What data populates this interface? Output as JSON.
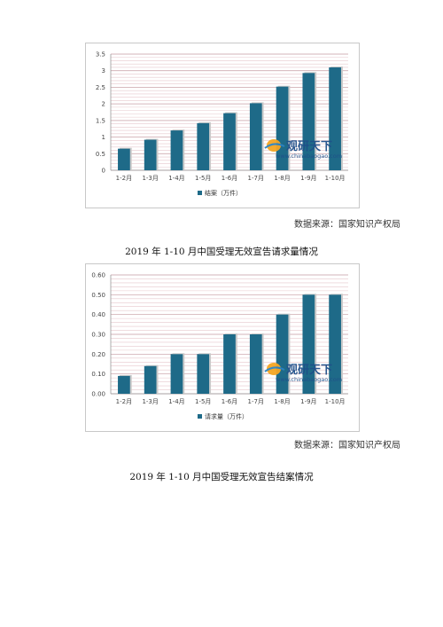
{
  "charts": [
    {
      "id": "chart1",
      "chart_data": {
        "type": "bar",
        "categories": [
          "1-2月",
          "1-3月",
          "1-4月",
          "1-5月",
          "1-6月",
          "1-7月",
          "1-8月",
          "1-9月",
          "1-10月"
        ],
        "series": [
          {
            "name": "结案（万件）",
            "values": [
              0.65,
              0.92,
              1.2,
              1.42,
              1.72,
              2.02,
              2.52,
              2.93,
              3.1
            ]
          }
        ],
        "ylim": [
          0,
          3.5
        ],
        "yticks": [
          "0",
          "0.5",
          "1",
          "1.5",
          "2",
          "2.5",
          "3",
          "3.5"
        ],
        "ytick_values": [
          0,
          0.5,
          1,
          1.5,
          2,
          2.5,
          3,
          3.5
        ],
        "grid": true,
        "legend_position": "bottom",
        "bar_color": "#1e6a88"
      }
    },
    {
      "id": "chart2",
      "chart_data": {
        "type": "bar",
        "categories": [
          "1-2月",
          "1-3月",
          "1-4月",
          "1-5月",
          "1-6月",
          "1-7月",
          "1-8月",
          "1-9月",
          "1-10月"
        ],
        "series": [
          {
            "name": "请求量（万件）",
            "values": [
              0.09,
              0.14,
              0.2,
              0.2,
              0.3,
              0.3,
              0.4,
              0.5,
              0.5
            ]
          }
        ],
        "ylim": [
          0,
          0.6
        ],
        "yticks": [
          "0.00",
          "0.10",
          "0.20",
          "0.30",
          "0.40",
          "0.50",
          "0.60"
        ],
        "ytick_values": [
          0,
          0.1,
          0.2,
          0.3,
          0.4,
          0.5,
          0.6
        ],
        "grid": true,
        "legend_position": "bottom",
        "bar_color": "#1e6a88"
      }
    }
  ],
  "watermark": {
    "text": "观研天下",
    "url": "www.chinabaogao.com"
  },
  "text": {
    "source1": "数据来源：国家知识产权局",
    "caption1": "2019 年 1-10 月中国受理无效宣告请求量情况",
    "source2": "数据来源：国家知识产权局",
    "caption2": "2019 年 1-10 月中国受理无效宣告结案情况"
  }
}
